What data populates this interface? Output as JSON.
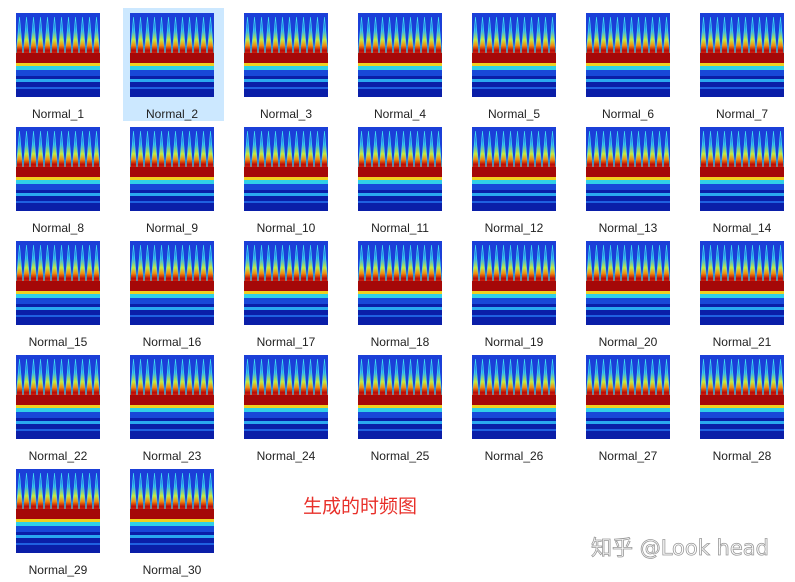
{
  "files": [
    "Normal_1",
    "Normal_2",
    "Normal_3",
    "Normal_4",
    "Normal_5",
    "Normal_6",
    "Normal_7",
    "Normal_8",
    "Normal_9",
    "Normal_10",
    "Normal_11",
    "Normal_12",
    "Normal_13",
    "Normal_14",
    "Normal_15",
    "Normal_16",
    "Normal_17",
    "Normal_18",
    "Normal_19",
    "Normal_20",
    "Normal_21",
    "Normal_22",
    "Normal_23",
    "Normal_24",
    "Normal_25",
    "Normal_26",
    "Normal_27",
    "Normal_28",
    "Normal_29",
    "Normal_30"
  ],
  "annotation": "生成的时频图",
  "watermark": "知乎 @Look head"
}
